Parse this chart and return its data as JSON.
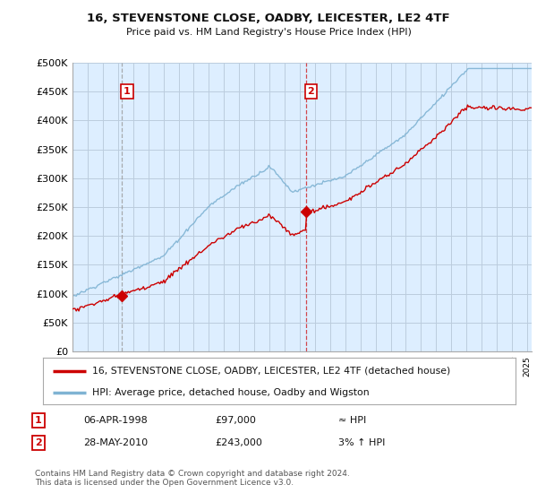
{
  "title1": "16, STEVENSTONE CLOSE, OADBY, LEICESTER, LE2 4TF",
  "title2": "Price paid vs. HM Land Registry's House Price Index (HPI)",
  "ylabel_ticks": [
    "£0",
    "£50K",
    "£100K",
    "£150K",
    "£200K",
    "£250K",
    "£300K",
    "£350K",
    "£400K",
    "£450K",
    "£500K"
  ],
  "ytick_values": [
    0,
    50000,
    100000,
    150000,
    200000,
    250000,
    300000,
    350000,
    400000,
    450000,
    500000
  ],
  "ylim": [
    0,
    500000
  ],
  "sale1_date": 1998.27,
  "sale1_price": 97000,
  "sale2_date": 2010.41,
  "sale2_price": 243000,
  "line1_label": "16, STEVENSTONE CLOSE, OADBY, LEICESTER, LE2 4TF (detached house)",
  "line2_label": "HPI: Average price, detached house, Oadby and Wigston",
  "table_row1": [
    "1",
    "06-APR-1998",
    "£97,000",
    "≈ HPI"
  ],
  "table_row2": [
    "2",
    "28-MAY-2010",
    "£243,000",
    "3% ↑ HPI"
  ],
  "footnote": "Contains HM Land Registry data © Crown copyright and database right 2024.\nThis data is licensed under the Open Government Licence v3.0.",
  "hpi_color": "#7fb3d3",
  "sale_color": "#cc0000",
  "vline1_style": "dashed",
  "vline2_style": "dashed",
  "bg_chart": "#ddeeff",
  "bg_fig": "#ffffff",
  "grid_color": "#bbccdd",
  "xmin": 1995.0,
  "xmax": 2025.3
}
